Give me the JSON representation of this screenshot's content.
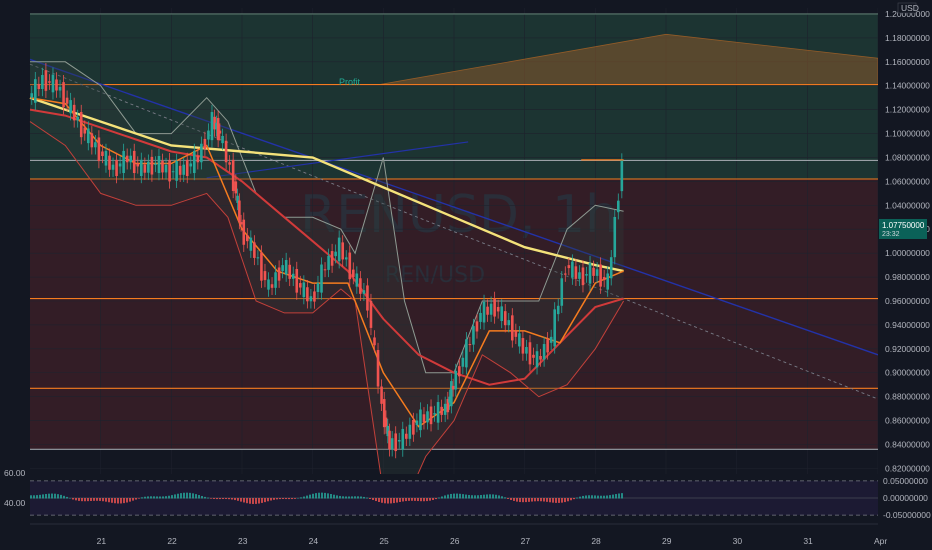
{
  "chart_data": {
    "type": "line",
    "symbol_watermark": "RENUSD, 1h",
    "pair_watermark": "REN/USD",
    "currency_label": "USD",
    "annotation_profit": "Profit",
    "x_ticks": [
      "21",
      "22",
      "23",
      "24",
      "25",
      "26",
      "27",
      "28",
      "29",
      "30",
      "31",
      "Apr"
    ],
    "y_ticks": [
      1.2,
      1.18,
      1.16,
      1.14,
      1.12,
      1.1,
      1.08,
      1.06,
      1.04,
      1.02,
      1.0,
      0.98,
      0.96,
      0.94,
      0.92,
      0.9,
      0.88,
      0.86,
      0.84,
      0.82
    ],
    "y_tick_labels": [
      "1.20000000",
      "1.18000000",
      "1.16000000",
      "1.14000000",
      "1.12000000",
      "1.10000000",
      "1.08000000",
      "1.06000000",
      "1.04000000",
      "1.02000000",
      "1.00000000",
      "0.98000000",
      "0.96000000",
      "0.94000000",
      "0.92000000",
      "0.90000000",
      "0.88000000",
      "0.86000000",
      "0.84000000",
      "0.82000000"
    ],
    "ylim": [
      0.817,
      1.205
    ],
    "xlim": [
      20.0,
      32.0
    ],
    "last_price": 1.0775,
    "last_price_label": "1.07750000",
    "last_price_countdown": "23:32",
    "horizontal_levels": [
      {
        "value": 1.2,
        "color": "#5d7a6f"
      },
      {
        "value": 1.141,
        "color": "#f57c1f"
      },
      {
        "value": 1.062,
        "color": "#f57c1f"
      },
      {
        "value": 1.0775,
        "color": "#9aa0a6"
      },
      {
        "value": 0.962,
        "color": "#f57c1f"
      },
      {
        "value": 0.887,
        "color": "#f57c1f"
      },
      {
        "value": 0.836,
        "color": "#9aa0a6"
      }
    ],
    "zones": {
      "profit_zone": [
        1.062,
        1.2
      ],
      "loss_zone": [
        0.836,
        1.062
      ]
    },
    "price_series": {
      "x": [
        20.0,
        20.2,
        20.4,
        20.6,
        20.8,
        21.0,
        21.2,
        21.4,
        21.6,
        21.8,
        22.0,
        22.2,
        22.4,
        22.6,
        22.7,
        22.9,
        23.0,
        23.2,
        23.4,
        23.6,
        23.8,
        24.0,
        24.2,
        24.4,
        24.6,
        24.8,
        25.0,
        25.1,
        25.3,
        25.5,
        25.7,
        25.9,
        26.0,
        26.2,
        26.4,
        26.6,
        26.8,
        27.0,
        27.2,
        27.4,
        27.6,
        27.8,
        28.0,
        28.2,
        28.4
      ],
      "y": [
        1.13,
        1.145,
        1.14,
        1.12,
        1.1,
        1.085,
        1.07,
        1.08,
        1.07,
        1.075,
        1.068,
        1.07,
        1.08,
        1.11,
        1.1,
        1.06,
        1.02,
        1.0,
        0.97,
        0.99,
        0.975,
        0.96,
        0.99,
        1.005,
        0.98,
        0.96,
        0.87,
        0.84,
        0.845,
        0.86,
        0.865,
        0.87,
        0.89,
        0.92,
        0.95,
        0.955,
        0.94,
        0.92,
        0.91,
        0.93,
        0.99,
        0.98,
        0.985,
        0.975,
        1.0775
      ]
    },
    "sma_yellow": {
      "x": [
        20.0,
        21.0,
        22.0,
        23.0,
        24.0,
        25.0,
        26.0,
        27.0,
        28.0,
        28.4
      ],
      "y": [
        1.13,
        1.11,
        1.09,
        1.085,
        1.08,
        1.055,
        1.03,
        1.005,
        0.99,
        0.985
      ]
    },
    "ema_red": {
      "x": [
        20.0,
        20.5,
        21.0,
        21.5,
        22.0,
        22.5,
        23.0,
        23.5,
        24.0,
        24.5,
        25.0,
        25.5,
        26.0,
        26.5,
        27.0,
        27.5,
        28.0,
        28.4
      ],
      "y": [
        1.12,
        1.115,
        1.105,
        1.095,
        1.085,
        1.08,
        1.06,
        1.035,
        1.01,
        0.985,
        0.945,
        0.915,
        0.9,
        0.89,
        0.895,
        0.925,
        0.955,
        0.962
      ]
    },
    "ema_orange": {
      "x": [
        20.0,
        20.5,
        21.0,
        21.5,
        22.0,
        22.5,
        23.0,
        23.5,
        24.0,
        24.5,
        25.0,
        25.5,
        26.0,
        26.5,
        27.0,
        27.5,
        28.0,
        28.4
      ],
      "y": [
        1.13,
        1.125,
        1.09,
        1.075,
        1.075,
        1.09,
        1.02,
        0.985,
        0.975,
        0.975,
        0.9,
        0.855,
        0.875,
        0.935,
        0.935,
        0.925,
        0.975,
        0.985
      ]
    },
    "bb_upper": {
      "x": [
        20.0,
        20.5,
        21.0,
        21.5,
        22.0,
        22.5,
        22.8,
        23.2,
        23.6,
        24.0,
        24.4,
        24.6,
        25.0,
        25.3,
        25.6,
        26.0,
        26.4,
        26.8,
        27.2,
        27.6,
        28.0,
        28.4
      ],
      "y": [
        1.16,
        1.16,
        1.14,
        1.1,
        1.1,
        1.13,
        1.11,
        1.05,
        1.03,
        1.03,
        1.02,
        1.0,
        1.08,
        0.96,
        0.9,
        0.9,
        0.96,
        0.96,
        0.96,
        1.02,
        1.04,
        1.035
      ]
    },
    "bb_lower": {
      "x": [
        20.0,
        20.5,
        21.0,
        21.5,
        22.0,
        22.5,
        22.8,
        23.2,
        23.6,
        24.0,
        24.4,
        24.6,
        25.0,
        25.3,
        25.6,
        26.0,
        26.4,
        26.8,
        27.2,
        27.6,
        28.0,
        28.4
      ],
      "y": [
        1.11,
        1.09,
        1.05,
        1.04,
        1.04,
        1.05,
        1.03,
        0.96,
        0.95,
        0.95,
        0.97,
        0.96,
        0.8,
        0.79,
        0.83,
        0.86,
        0.915,
        0.9,
        0.88,
        0.89,
        0.92,
        0.96
      ]
    },
    "oscillator": {
      "y_ticks": [
        0.05,
        0.0,
        -0.05
      ],
      "y_tick_labels": [
        "0.05000000",
        "0.00000000",
        "-0.05000000"
      ],
      "left_labels": [
        "60.00",
        "40.00"
      ],
      "ylim": [
        -0.07,
        0.07
      ]
    }
  }
}
